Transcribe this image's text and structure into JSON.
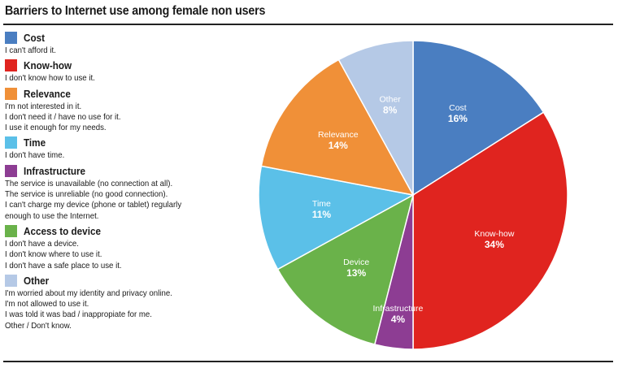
{
  "title": "Barriers to Internet use among female non users",
  "legend": [
    {
      "label": "Cost",
      "color": "#4a7ec1",
      "lines": [
        "I can't afford it."
      ]
    },
    {
      "label": "Know-how",
      "color": "#e0241f",
      "lines": [
        "I don't know how to use it."
      ]
    },
    {
      "label": "Relevance",
      "color": "#f09038",
      "lines": [
        "I'm not interested in it.",
        "I don't need it / have no use for it.",
        "I use it enough for my needs."
      ]
    },
    {
      "label": "Time",
      "color": "#5bc0e8",
      "lines": [
        "I don't have time."
      ]
    },
    {
      "label": "Infrastructure",
      "color": "#8d3d93",
      "lines": [
        "The service is unavailable (no connection at all).",
        "The service is unreliable (no good connection).",
        "I can't charge my device (phone or tablet) regularly",
        "enough to use the Internet."
      ]
    },
    {
      "label": "Access to device",
      "color": "#6ab24a",
      "lines": [
        "I don't have a device.",
        "I don't know where to use it.",
        "I don't have a safe place to use it."
      ]
    },
    {
      "label": "Other",
      "color": "#b5c9e6",
      "lines": [
        "I'm worried about my identity and privacy online.",
        "I'm not allowed to use it.",
        "I was told it was bad / inappropiate for me.",
        "Other / Don't know."
      ]
    }
  ],
  "chart_data": {
    "type": "pie",
    "title": "Barriers to Internet use among female non users",
    "start": "12 o'clock",
    "direction": "clockwise",
    "slices": [
      {
        "label": "Cost",
        "value": 16,
        "value_label": "16%",
        "color": "#4a7ec1"
      },
      {
        "label": "Know-how",
        "value": 34,
        "value_label": "34%",
        "color": "#e0241f"
      },
      {
        "label": "Infrastructure",
        "value": 4,
        "value_label": "4%",
        "color": "#8d3d93"
      },
      {
        "label": "Device",
        "value": 13,
        "value_label": "13%",
        "color": "#6ab24a"
      },
      {
        "label": "Time",
        "value": 11,
        "value_label": "11%",
        "color": "#5bc0e8"
      },
      {
        "label": "Relevance",
        "value": 14,
        "value_label": "14%",
        "color": "#f09038"
      },
      {
        "label": "Other",
        "value": 8,
        "value_label": "8%",
        "color": "#b5c9e6"
      }
    ]
  }
}
